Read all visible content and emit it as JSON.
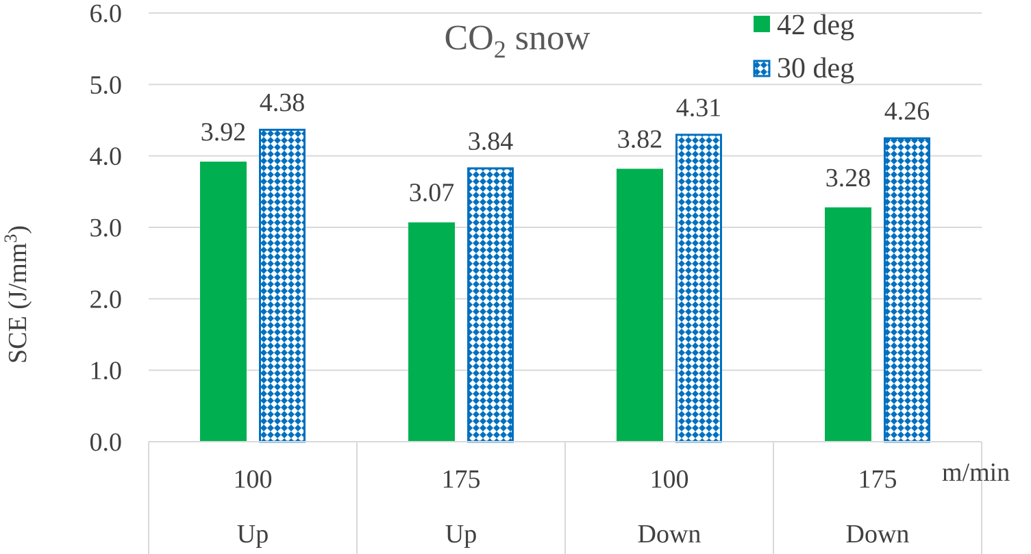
{
  "chart_data": {
    "type": "bar",
    "title": "CO",
    "title_subscript": "2",
    "title_suffix": " snow",
    "ylabel": "SCE (J/mm",
    "ylabel_superscript": "3",
    "ylabel_close": ")",
    "xunit": "m/min",
    "ylim": [
      0,
      6
    ],
    "yticks": [
      "0.0",
      "1.0",
      "2.0",
      "3.0",
      "4.0",
      "5.0",
      "6.0"
    ],
    "grid": true,
    "legend": "top-right",
    "categories": [
      {
        "speed": "100",
        "direction": "Up"
      },
      {
        "speed": "175",
        "direction": "Up"
      },
      {
        "speed": "100",
        "direction": "Down"
      },
      {
        "speed": "175",
        "direction": "Down"
      }
    ],
    "series": [
      {
        "name": "42 deg",
        "values": [
          3.92,
          3.07,
          3.82,
          3.28
        ],
        "labels": [
          "3.92",
          "3.07",
          "3.82",
          "3.28"
        ],
        "color": "#00b050",
        "pattern": "solid"
      },
      {
        "name": "30 deg",
        "values": [
          4.38,
          3.84,
          4.31,
          4.26
        ],
        "labels": [
          "4.38",
          "3.84",
          "4.31",
          "4.26"
        ],
        "color": "#0070c0",
        "pattern": "checker"
      }
    ]
  }
}
